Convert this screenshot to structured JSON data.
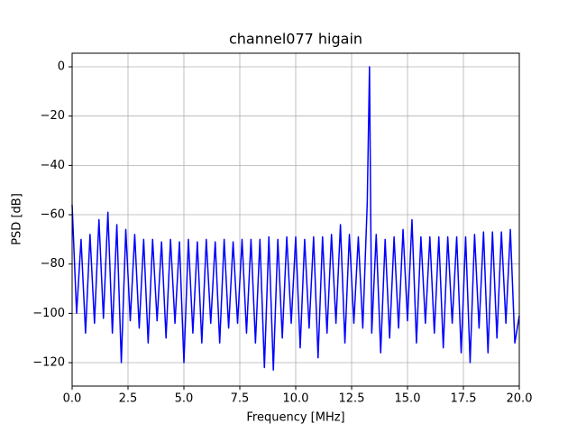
{
  "chart_data": {
    "type": "line",
    "title": "channel077 higain",
    "x_label": "Frequency [MHz]",
    "y_label": "PSD [dB]",
    "x": [
      0,
      0.2,
      0.4,
      0.6,
      0.8,
      1.0,
      1.2,
      1.4,
      1.6,
      1.8,
      2.0,
      2.2,
      2.4,
      2.6,
      2.8,
      3.0,
      3.2,
      3.4,
      3.6,
      3.8,
      4.0,
      4.2,
      4.4,
      4.6,
      4.8,
      5.0,
      5.2,
      5.4,
      5.6,
      5.8,
      6.0,
      6.2,
      6.4,
      6.6,
      6.8,
      7.0,
      7.2,
      7.4,
      7.6,
      7.8,
      8.0,
      8.2,
      8.4,
      8.6,
      8.8,
      9.0,
      9.2,
      9.4,
      9.6,
      9.8,
      10.0,
      10.2,
      10.4,
      10.6,
      10.8,
      11.0,
      11.2,
      11.4,
      11.6,
      11.8,
      12.0,
      12.2,
      12.4,
      12.6,
      12.8,
      13.0,
      13.2,
      13.3,
      13.4,
      13.6,
      13.8,
      14.0,
      14.2,
      14.4,
      14.6,
      14.8,
      15.0,
      15.2,
      15.4,
      15.6,
      15.8,
      16.0,
      16.2,
      16.4,
      16.6,
      16.8,
      17.0,
      17.2,
      17.4,
      17.6,
      17.8,
      18.0,
      18.2,
      18.4,
      18.6,
      18.8,
      19.0,
      19.2,
      19.4,
      19.6,
      19.8,
      20.0
    ],
    "series": [
      {
        "name": "PSD",
        "color": "#0000ff",
        "values": [
          -56,
          -100,
          -70,
          -108,
          -68,
          -104,
          -62,
          -102,
          -59,
          -108,
          -64,
          -120,
          -66,
          -103,
          -68,
          -106,
          -70,
          -112,
          -70,
          -103,
          -71,
          -110,
          -70,
          -104,
          -71,
          -120,
          -70,
          -108,
          -71,
          -112,
          -70,
          -104,
          -71,
          -112,
          -70,
          -106,
          -71,
          -104,
          -70,
          -108,
          -70,
          -112,
          -70,
          -122,
          -69,
          -123,
          -70,
          -110,
          -69,
          -104,
          -69,
          -114,
          -70,
          -106,
          -69,
          -118,
          -69,
          -108,
          -68,
          -104,
          -64,
          -112,
          -68,
          -104,
          -69,
          -106,
          -55,
          0,
          -108,
          -68,
          -116,
          -70,
          -110,
          -69,
          -106,
          -66,
          -103,
          -62,
          -112,
          -69,
          -104,
          -69,
          -108,
          -69,
          -114,
          -69,
          -104,
          -69,
          -116,
          -69,
          -120,
          -68,
          -106,
          -67,
          -116,
          -67,
          -110,
          -67,
          -104,
          -66,
          -112,
          -101
        ]
      }
    ],
    "xlim": [
      0,
      20
    ],
    "ylim": [
      -129.5,
      5.5
    ],
    "xticks": [
      {
        "value": 0,
        "label": "0.0"
      },
      2.5,
      {
        "value": 5,
        "label": "5.0"
      },
      7.5,
      {
        "value": 10,
        "label": "10.0"
      },
      12.5,
      {
        "value": 15,
        "label": "15.0"
      },
      17.5,
      {
        "value": 20,
        "label": "20.0"
      }
    ],
    "yticks": [
      {
        "value": -120,
        "label": "−120"
      },
      {
        "value": -100,
        "label": "−100"
      },
      {
        "value": -80,
        "label": "−80"
      },
      {
        "value": -60,
        "label": "−60"
      },
      {
        "value": -40,
        "label": "−40"
      },
      {
        "value": -20,
        "label": "−20"
      },
      0
    ],
    "grid": true
  }
}
